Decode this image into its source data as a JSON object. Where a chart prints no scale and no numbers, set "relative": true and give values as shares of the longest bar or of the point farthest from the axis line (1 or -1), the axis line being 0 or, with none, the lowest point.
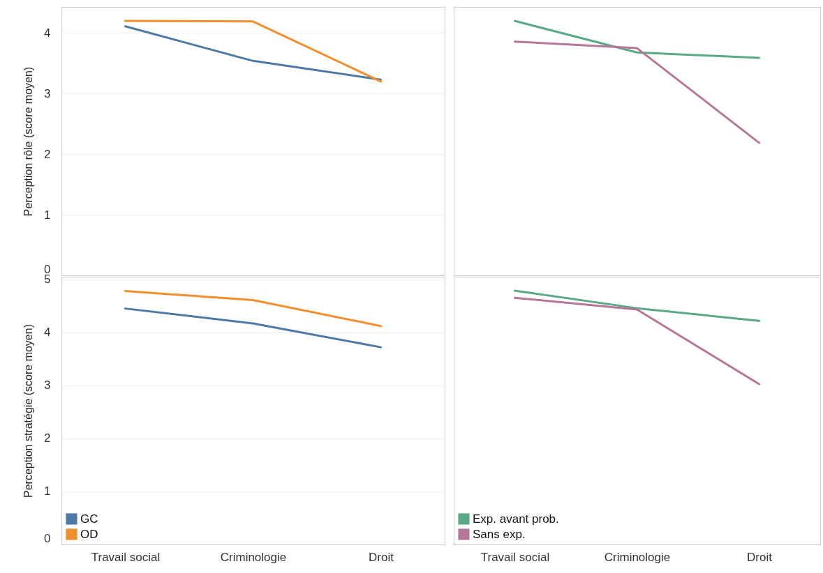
{
  "chart_data": [
    {
      "type": "line",
      "ylabel": "Perception rôle (score moyen)",
      "categories": [
        null,
        null,
        null
      ],
      "series": [
        {
          "color": "#4e79a7",
          "values": [
            4.11,
            3.54,
            3.23
          ]
        },
        {
          "color": "#f28e2b",
          "values": [
            4.2,
            4.19,
            3.2
          ]
        }
      ],
      "ylim": [
        0,
        4.43
      ],
      "yticks": [
        0,
        1,
        2,
        3,
        4
      ],
      "grid": "y",
      "tick_labels": "y"
    },
    {
      "type": "line",
      "relative": true,
      "categories": [
        null,
        null,
        null
      ],
      "series": [
        {
          "color": "#59a985",
          "values": [
            1,
            0.876,
            0.855
          ]
        },
        {
          "color": "#b6769a",
          "values": [
            0.919,
            0.893,
            0.521
          ]
        }
      ],
      "tick_labels": false
    },
    {
      "type": "line",
      "ylabel": "Perception stratégie (score moyen)",
      "categories": [
        "Travail social",
        "Criminologie",
        "Droit"
      ],
      "series": [
        {
          "name": "GC",
          "color": "#4e79a7",
          "values": [
            4.45,
            4.17,
            3.72
          ]
        },
        {
          "name": "OD",
          "color": "#f28e2b",
          "values": [
            4.78,
            4.61,
            4.12
          ]
        }
      ],
      "ylim": [
        0,
        5.05
      ],
      "yticks": [
        0,
        1,
        2,
        3,
        4,
        5
      ],
      "grid": "y",
      "legend": "bottom left"
    },
    {
      "type": "line",
      "relative": true,
      "categories": [
        "Travail social",
        "Criminologie",
        "Droit"
      ],
      "series": [
        {
          "name": "Exp. avant prob.",
          "color": "#59a985",
          "values": [
            1,
            0.931,
            0.881
          ]
        },
        {
          "name": "Sans exp.",
          "color": "#b6769a",
          "values": [
            0.972,
            0.926,
            0.632
          ]
        }
      ],
      "tick_labels": "x",
      "legend": "bottom left"
    }
  ]
}
